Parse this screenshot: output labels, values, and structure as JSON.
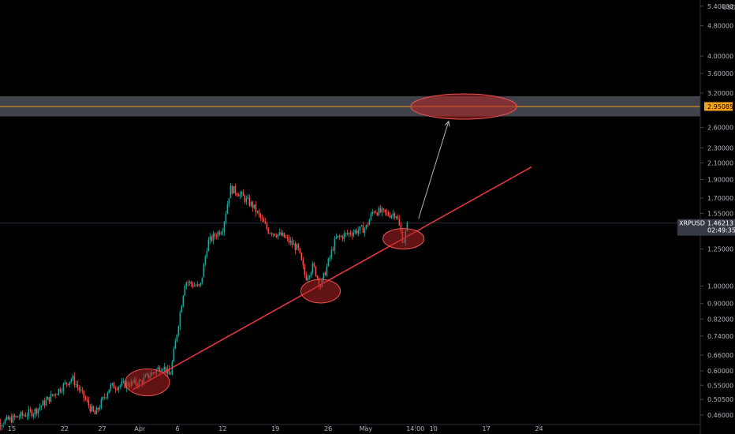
{
  "chart_data": {
    "type": "candlestick",
    "symbol": "XRPUSD",
    "currency": "USD",
    "last_price": "1.46213",
    "countdown": "02:49:35",
    "target_price": "2.95085",
    "scale": "log",
    "grid": false,
    "y_ticks": [
      "5.40000",
      "4.80000",
      "4.00000",
      "3.60000",
      "3.20000",
      "2.60000",
      "2.30000",
      "2.10000",
      "1.90000",
      "1.70000",
      "1.55000",
      "1.40000",
      "1.25000",
      "1.00000",
      "0.90000",
      "0.82000",
      "0.74000",
      "0.66000",
      "0.60000",
      "0.55000",
      "0.50500",
      "0.46000"
    ],
    "x_ticks": [
      "15",
      "22",
      "27",
      "Apr",
      "6",
      "12",
      "19",
      "26",
      "May",
      "14:00",
      "10",
      "17",
      "24"
    ],
    "ylim": [
      0.42,
      5.5
    ],
    "resistance_zone": [
      2.78,
      3.14
    ],
    "trendline": {
      "from": {
        "date": "2021-03-31",
        "price": 0.535
      },
      "to": {
        "date": "2021-05-23",
        "price": 2.05
      }
    },
    "projection_arrow": {
      "from": {
        "date": "2021-05-08",
        "price": 1.5
      },
      "to": {
        "date": "2021-05-12",
        "price": 2.7
      }
    },
    "highlight_ellipses": [
      {
        "date": "2021-04-02",
        "price": 0.56
      },
      {
        "date": "2021-04-25",
        "price": 0.97
      },
      {
        "date": "2021-05-06",
        "price": 1.33
      },
      {
        "date": "2021-05-14",
        "price": 2.95
      }
    ],
    "key_points": [
      {
        "date": "2021-03-12",
        "price": 0.43
      },
      {
        "date": "2021-03-18",
        "price": 0.47
      },
      {
        "date": "2021-03-23",
        "price": 0.575
      },
      {
        "date": "2021-03-26",
        "price": 0.46
      },
      {
        "date": "2021-03-28",
        "price": 0.545
      },
      {
        "date": "2021-04-01",
        "price": 0.56
      },
      {
        "date": "2021-04-04",
        "price": 0.62
      },
      {
        "date": "2021-04-05",
        "price": 0.58
      },
      {
        "date": "2021-04-07",
        "price": 1.03
      },
      {
        "date": "2021-04-09",
        "price": 0.99
      },
      {
        "date": "2021-04-10",
        "price": 1.3
      },
      {
        "date": "2021-04-12",
        "price": 1.42
      },
      {
        "date": "2021-04-13",
        "price": 1.8
      },
      {
        "date": "2021-04-14",
        "price": 1.76
      },
      {
        "date": "2021-04-16",
        "price": 1.62
      },
      {
        "date": "2021-04-18",
        "price": 1.4
      },
      {
        "date": "2021-04-20",
        "price": 1.35
      },
      {
        "date": "2021-04-22",
        "price": 1.25
      },
      {
        "date": "2021-04-23",
        "price": 1.05
      },
      {
        "date": "2021-04-24",
        "price": 1.13
      },
      {
        "date": "2021-04-25",
        "price": 1.0
      },
      {
        "date": "2021-04-27",
        "price": 1.33
      },
      {
        "date": "2021-04-29",
        "price": 1.38
      },
      {
        "date": "2021-05-01",
        "price": 1.42
      },
      {
        "date": "2021-05-02",
        "price": 1.58
      },
      {
        "date": "2021-05-04",
        "price": 1.54
      },
      {
        "date": "2021-05-05",
        "price": 1.55
      },
      {
        "date": "2021-05-06",
        "price": 1.3
      },
      {
        "date": "2021-05-06T14:00",
        "price": 1.46
      }
    ]
  }
}
